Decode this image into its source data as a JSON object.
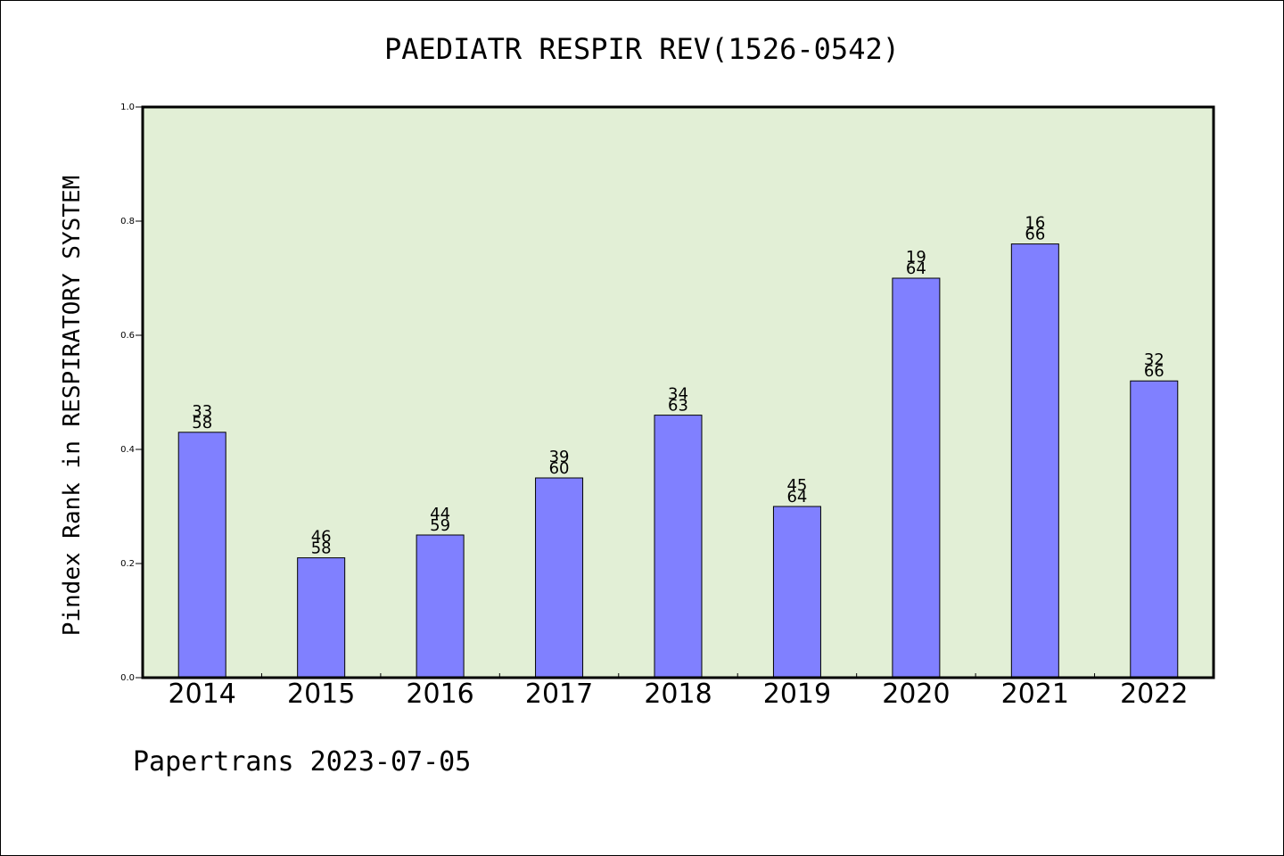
{
  "chart_data": {
    "type": "bar",
    "title": "PAEDIATR RESPIR REV(1526-0542)",
    "ylabel": "Pindex Rank in RESPIRATORY SYSTEM",
    "xlabel": "",
    "categories": [
      "2014",
      "2015",
      "2016",
      "2017",
      "2018",
      "2019",
      "2020",
      "2021",
      "2022"
    ],
    "values": [
      0.43,
      0.21,
      0.25,
      0.35,
      0.46,
      0.3,
      0.7,
      0.76,
      0.52
    ],
    "bar_labels": [
      {
        "top": "33",
        "bottom": "58"
      },
      {
        "top": "46",
        "bottom": "58"
      },
      {
        "top": "44",
        "bottom": "59"
      },
      {
        "top": "39",
        "bottom": "60"
      },
      {
        "top": "34",
        "bottom": "63"
      },
      {
        "top": "45",
        "bottom": "64"
      },
      {
        "top": "19",
        "bottom": "64"
      },
      {
        "top": "16",
        "bottom": "66"
      },
      {
        "top": "32",
        "bottom": "66"
      }
    ],
    "ylim": [
      0.0,
      1.0
    ],
    "yticks": [
      "0.0",
      "0.2",
      "0.4",
      "0.6",
      "0.8",
      "1.0"
    ],
    "grid": false,
    "colors": {
      "bar": "#8080ff",
      "plot_background": "#e2efd6",
      "axis": "#000000"
    }
  },
  "footer": "Papertrans 2023-07-05"
}
